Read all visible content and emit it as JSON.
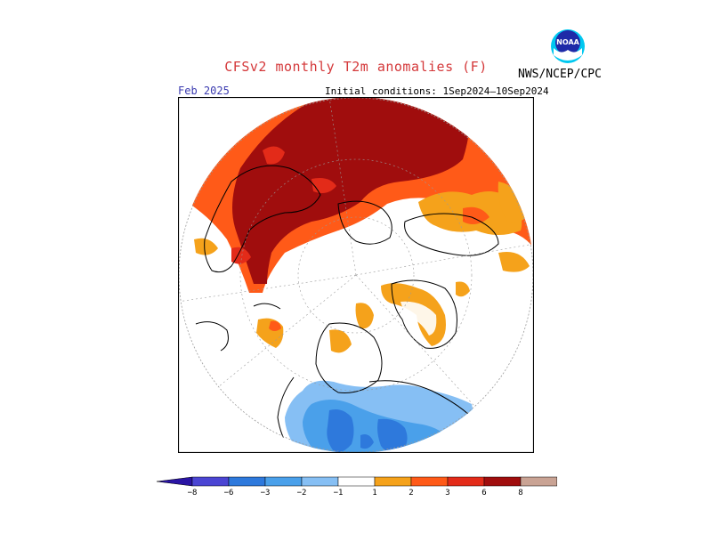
{
  "title": "CFSv2 monthly T2m anomalies (F)",
  "agency": "NWS/NCEP/CPC",
  "logo_icon": "noaa-logo-icon",
  "month_label": "Feb 2025",
  "initial_conditions": "Initial conditions: 1Sep2024–10Sep2024",
  "colorbar": {
    "labels": [
      "−8",
      "−6",
      "−3",
      "−2",
      "−1",
      "1",
      "2",
      "3",
      "6",
      "8"
    ],
    "colors": [
      "#2a14a4",
      "#4b45d3",
      "#2e79dc",
      "#4aa0ea",
      "#86bff4",
      "#ffffff",
      "#f5a21b",
      "#ff5a18",
      "#e32b19",
      "#a00d0d",
      "#c9a394",
      "#7e4a3f"
    ]
  },
  "palette": {
    "title_color": "#d4383a",
    "month_color": "#3b3bb0",
    "warm_1": "#f5a21b",
    "warm_2": "#ff5a18",
    "warm_3": "#e32b19",
    "warm_4": "#a00d0d",
    "cold_1": "#86bff4",
    "cold_2": "#4aa0ea",
    "cold_3": "#2e79dc"
  }
}
